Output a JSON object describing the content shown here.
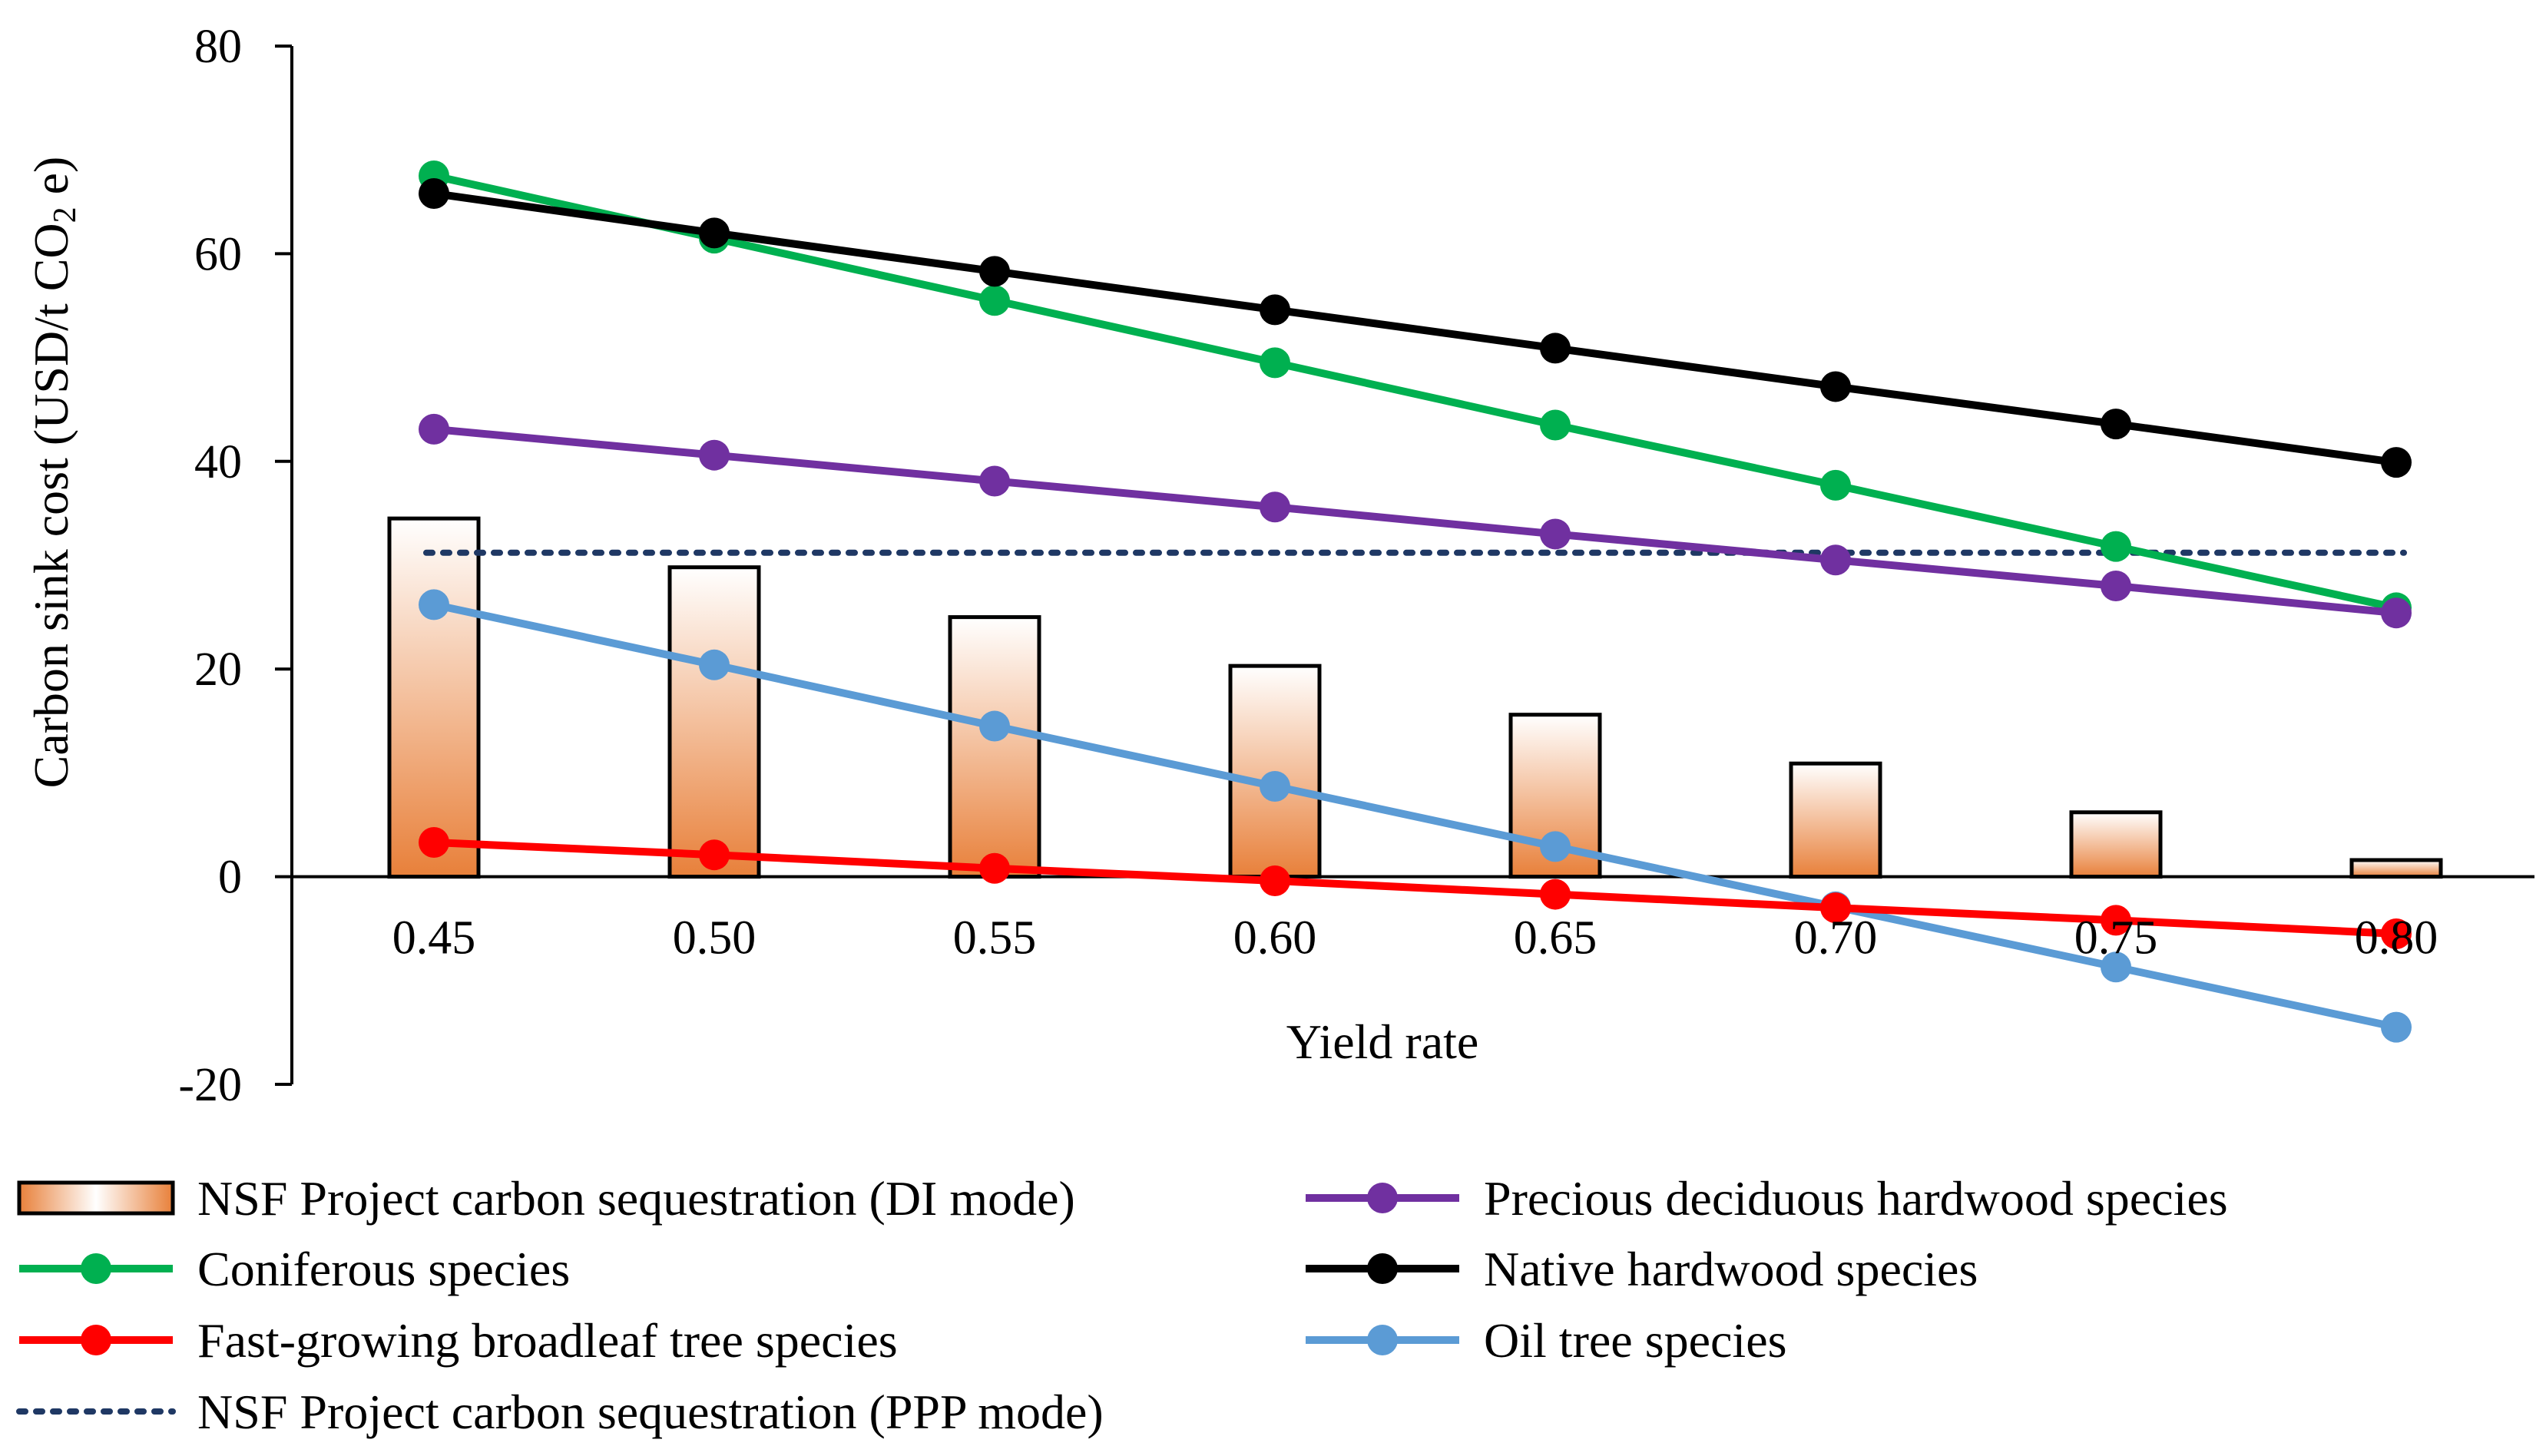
{
  "chart_data": {
    "type": "bar+line",
    "title": "",
    "xlabel": "Yield rate",
    "ylabel": "Carbon sink cost (USD/t CO",
    "ylabel_sub": "2",
    "ylabel_tail": " e)",
    "ylim": [
      -20,
      80
    ],
    "yticks": [
      -20,
      0,
      20,
      40,
      60,
      80
    ],
    "ytick_labels": [
      "-20",
      "0",
      "20",
      "40",
      "60",
      "80"
    ],
    "categories": [
      "0.45",
      "0.50",
      "0.55",
      "0.60",
      "0.65",
      "0.70",
      "0.75",
      "0.80"
    ],
    "bars": {
      "name": "NSF Project carbon sequestration (DI mode)",
      "values": [
        34.5,
        29.8,
        25.0,
        20.3,
        15.6,
        10.9,
        6.2,
        1.6
      ],
      "fill_top": "#ffffff",
      "fill_bottom": "#e8803a",
      "stroke": "#000000"
    },
    "series": [
      {
        "name": "Coniferous species",
        "color": "#00b050",
        "values": [
          67.5,
          61.5,
          55.5,
          49.5,
          43.5,
          37.7,
          31.8,
          25.9
        ]
      },
      {
        "name": "Native hardwood species",
        "color": "#000000",
        "values": [
          65.8,
          62.0,
          58.3,
          54.6,
          50.9,
          47.2,
          43.6,
          39.9
        ]
      },
      {
        "name": "Precious deciduous hardwood species",
        "color": "#7030a0",
        "values": [
          43.1,
          40.6,
          38.1,
          35.6,
          33.0,
          30.5,
          28.0,
          25.4
        ]
      },
      {
        "name": "Oil tree species",
        "color": "#5b9bd5",
        "values": [
          26.2,
          20.4,
          14.5,
          8.7,
          2.9,
          -2.9,
          -8.7,
          -14.5
        ]
      },
      {
        "name": "Fast-growing broadleaf tree species",
        "color": "#ff0000",
        "values": [
          3.3,
          2.1,
          0.8,
          -0.4,
          -1.7,
          -3.0,
          -4.2,
          -5.5
        ]
      }
    ],
    "reference_line": {
      "name": "NSF Project carbon sequestration (PPP mode)",
      "value": 31.2,
      "color": "#1f3864",
      "style": "dotted"
    },
    "legend": {
      "placement": "bottom",
      "entries": [
        "NSF Project carbon sequestration (DI mode)",
        "Precious deciduous hardwood species",
        "Coniferous species",
        "Native hardwood species",
        "Fast-growing broadleaf tree species",
        "Oil tree species",
        "NSF Project carbon sequestration (PPP mode)"
      ]
    }
  }
}
